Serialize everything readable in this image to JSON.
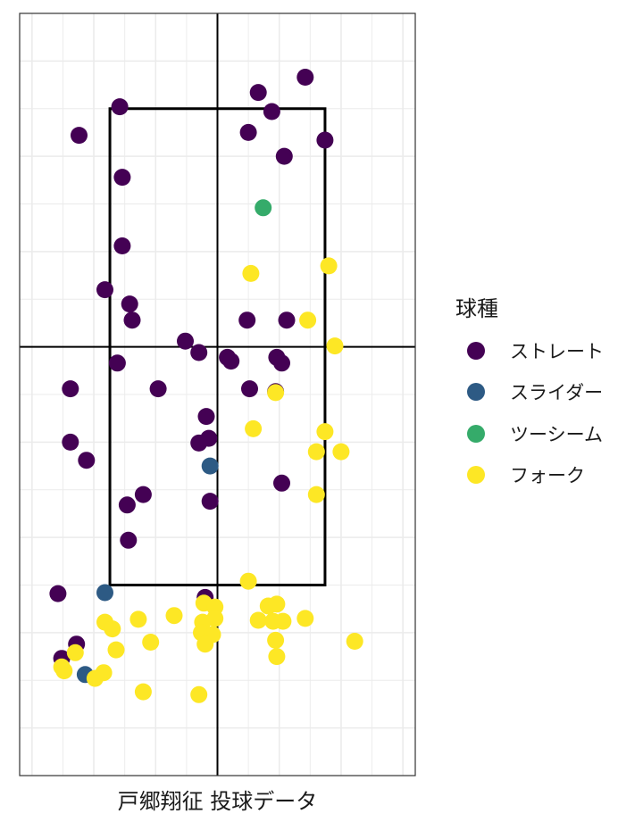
{
  "chart_data": {
    "type": "scatter",
    "title": "",
    "xlabel": "戸郷翔征 投球データ",
    "ylabel": "",
    "xlim": [
      -1.6,
      1.6
    ],
    "ylim": [
      -0.5,
      7.5
    ],
    "grid": true,
    "strike_zone": {
      "x": [
        -0.87,
        0.87
      ],
      "y": [
        1.5,
        6.5
      ]
    },
    "center_lines": {
      "x": 0,
      "y": 4
    },
    "legend": {
      "title": "球種",
      "position": "right"
    },
    "series": [
      {
        "name": "ストレート",
        "color": "#440154",
        "points": [
          [
            0.71,
            6.83
          ],
          [
            0.33,
            6.67
          ],
          [
            0.44,
            6.47
          ],
          [
            -0.79,
            6.52
          ],
          [
            0.25,
            6.25
          ],
          [
            -1.12,
            6.22
          ],
          [
            0.87,
            6.17
          ],
          [
            0.54,
            6.0
          ],
          [
            -0.77,
            5.78
          ],
          [
            -0.77,
            5.06
          ],
          [
            -0.91,
            4.6
          ],
          [
            -0.71,
            4.45
          ],
          [
            -0.69,
            4.28
          ],
          [
            0.24,
            4.28
          ],
          [
            0.56,
            4.28
          ],
          [
            -0.26,
            4.06
          ],
          [
            -0.15,
            3.94
          ],
          [
            0.08,
            3.89
          ],
          [
            0.11,
            3.85
          ],
          [
            0.48,
            3.89
          ],
          [
            0.52,
            3.83
          ],
          [
            -0.81,
            3.83
          ],
          [
            -1.19,
            3.56
          ],
          [
            -0.48,
            3.56
          ],
          [
            0.26,
            3.56
          ],
          [
            0.47,
            3.53
          ],
          [
            -0.09,
            3.27
          ],
          [
            -1.19,
            3.0
          ],
          [
            -0.07,
            3.04
          ],
          [
            -0.15,
            2.99
          ],
          [
            -1.06,
            2.81
          ],
          [
            0.52,
            2.57
          ],
          [
            -0.6,
            2.45
          ],
          [
            -0.73,
            2.34
          ],
          [
            -0.06,
            2.38
          ],
          [
            -0.72,
            1.97
          ],
          [
            -1.29,
            1.41
          ],
          [
            -0.1,
            1.37
          ],
          [
            -1.14,
            0.88
          ],
          [
            -1.26,
            0.73
          ]
        ]
      },
      {
        "name": "スライダー",
        "color": "#2D5A84",
        "points": [
          [
            -0.06,
            2.75
          ],
          [
            -0.91,
            1.42
          ],
          [
            -1.07,
            0.56
          ]
        ]
      },
      {
        "name": "ツーシーム",
        "color": "#35AB6A",
        "points": [
          [
            0.37,
            5.46
          ]
        ]
      },
      {
        "name": "フォーク",
        "color": "#FDE725",
        "points": [
          [
            0.9,
            4.85
          ],
          [
            0.27,
            4.77
          ],
          [
            0.73,
            4.28
          ],
          [
            0.95,
            4.01
          ],
          [
            0.47,
            3.52
          ],
          [
            0.29,
            3.14
          ],
          [
            0.87,
            3.11
          ],
          [
            0.8,
            2.9
          ],
          [
            1.0,
            2.9
          ],
          [
            0.8,
            2.45
          ],
          [
            0.25,
            1.54
          ],
          [
            -0.11,
            1.31
          ],
          [
            -0.02,
            1.27
          ],
          [
            0.41,
            1.28
          ],
          [
            0.48,
            1.3
          ],
          [
            -0.64,
            1.14
          ],
          [
            -0.35,
            1.18
          ],
          [
            -0.91,
            1.11
          ],
          [
            -0.85,
            1.04
          ],
          [
            -0.12,
            1.11
          ],
          [
            -0.02,
            1.15
          ],
          [
            0.33,
            1.13
          ],
          [
            0.45,
            1.12
          ],
          [
            0.53,
            1.12
          ],
          [
            0.71,
            1.15
          ],
          [
            -0.13,
            1.0
          ],
          [
            -0.04,
            0.98
          ],
          [
            -0.54,
            0.9
          ],
          [
            -0.1,
            0.88
          ],
          [
            0.47,
            0.92
          ],
          [
            1.11,
            0.91
          ],
          [
            -0.82,
            0.82
          ],
          [
            0.48,
            0.75
          ],
          [
            -1.15,
            0.79
          ],
          [
            -1.26,
            0.64
          ],
          [
            -1.24,
            0.6
          ],
          [
            -0.92,
            0.58
          ],
          [
            -0.99,
            0.52
          ],
          [
            -0.6,
            0.38
          ],
          [
            -0.15,
            0.35
          ]
        ]
      }
    ]
  }
}
